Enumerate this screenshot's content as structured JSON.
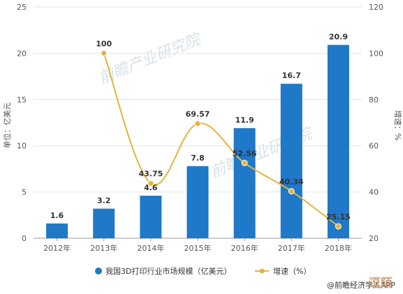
{
  "chart_data": {
    "type": "bar",
    "categories": [
      "2012年",
      "2013年",
      "2014年",
      "2015年",
      "2016年",
      "2017年",
      "2018年"
    ],
    "series": [
      {
        "name": "我国3D打印行业市场规模（亿美元）",
        "type": "bar",
        "axis": "left",
        "values": [
          1.6,
          3.2,
          4.6,
          7.8,
          11.9,
          16.7,
          20.9
        ],
        "color": "#1f78c8",
        "labels": [
          "1.6",
          "3.2",
          "4.6",
          "7.8",
          "11.9",
          "16.7",
          "20.9"
        ]
      },
      {
        "name": "增速（%）",
        "type": "line",
        "axis": "right",
        "values": [
          null,
          100,
          43.75,
          69.57,
          52.56,
          40.34,
          25.15
        ],
        "color": "#e6b43c",
        "labels": [
          "",
          "100",
          "43.75",
          "69.57",
          "52.56",
          "40.34",
          "25.15"
        ]
      }
    ],
    "ylabel": "单位：亿美元",
    "y2label": "增速：%",
    "ylim": [
      0,
      25
    ],
    "y2lim": [
      20,
      120
    ],
    "yticks": [
      "0",
      "5",
      "10",
      "15",
      "20",
      "25"
    ],
    "y2ticks": [
      "20",
      "40",
      "60",
      "80",
      "100",
      "120"
    ],
    "grid": true,
    "legend": "bottom",
    "watermark": "前瞻产业研究院",
    "source": "@前瞻经济学人APP",
    "corner_mark": "逗陌"
  }
}
